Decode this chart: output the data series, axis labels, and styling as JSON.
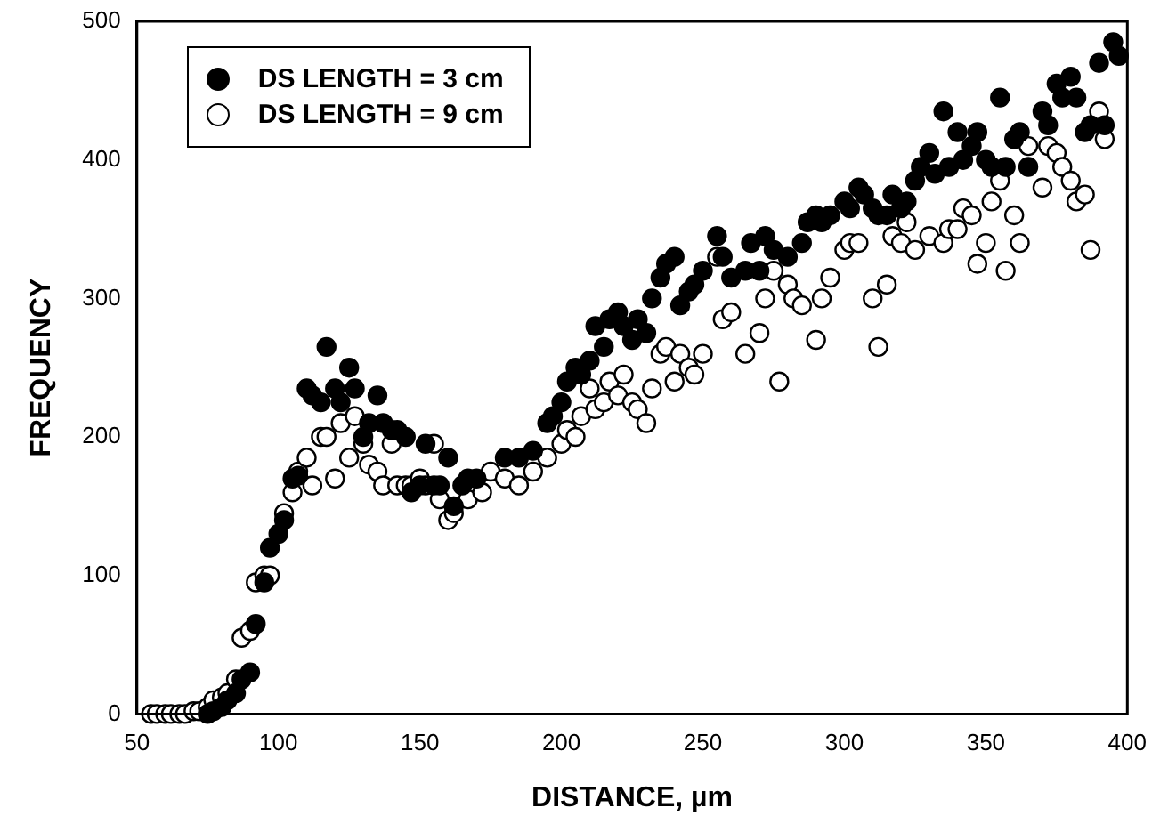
{
  "chart_data": {
    "type": "scatter",
    "xlabel": "DISTANCE, µm",
    "ylabel": "FREQUENCY",
    "xlim": [
      50,
      400
    ],
    "ylim": [
      0,
      500
    ],
    "xticks": [
      50,
      100,
      150,
      200,
      250,
      300,
      350,
      400
    ],
    "yticks": [
      0,
      100,
      200,
      300,
      400,
      500
    ],
    "grid": false,
    "legend": "top left",
    "marker": "circle",
    "series": [
      {
        "name": "DS LENGTH = 3 cm",
        "color": "#000000",
        "x": [
          75,
          77,
          80,
          82,
          85,
          87,
          90,
          92,
          95,
          97,
          100,
          102,
          105,
          107,
          110,
          112,
          115,
          117,
          120,
          122,
          125,
          127,
          130,
          132,
          135,
          137,
          140,
          142,
          145,
          147,
          150,
          152,
          155,
          157,
          160,
          162,
          165,
          167,
          170,
          180,
          185,
          190,
          195,
          197,
          200,
          202,
          205,
          207,
          210,
          212,
          215,
          217,
          220,
          222,
          225,
          227,
          230,
          232,
          235,
          237,
          240,
          242,
          245,
          247,
          250,
          255,
          257,
          260,
          265,
          267,
          270,
          272,
          275,
          280,
          285,
          287,
          290,
          292,
          295,
          300,
          302,
          305,
          307,
          310,
          312,
          315,
          317,
          320,
          322,
          325,
          327,
          330,
          332,
          335,
          337,
          340,
          342,
          345,
          347,
          350,
          352,
          355,
          357,
          360,
          362,
          365,
          370,
          372,
          375,
          377,
          380,
          382,
          385,
          387,
          390,
          392,
          395,
          397
        ],
        "values": [
          0,
          2,
          5,
          10,
          15,
          25,
          30,
          65,
          95,
          120,
          130,
          140,
          170,
          172,
          235,
          230,
          225,
          265,
          235,
          225,
          250,
          235,
          200,
          210,
          230,
          210,
          205,
          205,
          200,
          160,
          165,
          195,
          165,
          165,
          185,
          150,
          165,
          170,
          170,
          185,
          185,
          190,
          210,
          215,
          225,
          240,
          250,
          245,
          255,
          280,
          265,
          285,
          290,
          280,
          270,
          285,
          275,
          300,
          315,
          325,
          330,
          295,
          305,
          310,
          320,
          345,
          330,
          315,
          320,
          340,
          320,
          345,
          335,
          330,
          340,
          355,
          360,
          355,
          360,
          370,
          365,
          380,
          375,
          365,
          360,
          360,
          375,
          365,
          370,
          385,
          395,
          405,
          390,
          435,
          395,
          420,
          400,
          410,
          420,
          400,
          395,
          445,
          395,
          415,
          420,
          395,
          435,
          425,
          455,
          445,
          460,
          445,
          420,
          425,
          470,
          425,
          485,
          475
        ]
      },
      {
        "name": "DS LENGTH = 9 cm",
        "color": "#ffffff",
        "x": [
          55,
          57,
          60,
          62,
          65,
          67,
          70,
          72,
          75,
          77,
          80,
          82,
          85,
          87,
          90,
          92,
          95,
          97,
          102,
          105,
          107,
          110,
          112,
          115,
          117,
          120,
          122,
          125,
          127,
          130,
          132,
          135,
          137,
          140,
          142,
          145,
          147,
          150,
          152,
          155,
          157,
          160,
          162,
          167,
          172,
          175,
          180,
          185,
          190,
          195,
          200,
          202,
          205,
          207,
          210,
          212,
          215,
          217,
          220,
          222,
          225,
          227,
          230,
          232,
          235,
          237,
          240,
          242,
          245,
          247,
          250,
          255,
          257,
          260,
          265,
          270,
          272,
          275,
          277,
          280,
          282,
          285,
          290,
          292,
          295,
          300,
          302,
          305,
          310,
          312,
          315,
          317,
          320,
          322,
          325,
          330,
          335,
          337,
          340,
          342,
          345,
          347,
          350,
          352,
          355,
          357,
          360,
          362,
          365,
          370,
          372,
          375,
          377,
          380,
          382,
          385,
          387,
          390,
          392
        ],
        "values": [
          0,
          0,
          0,
          0,
          0,
          0,
          2,
          2,
          5,
          10,
          12,
          15,
          25,
          55,
          60,
          95,
          100,
          100,
          145,
          160,
          175,
          185,
          165,
          200,
          200,
          170,
          210,
          185,
          215,
          195,
          180,
          175,
          165,
          195,
          165,
          165,
          165,
          170,
          165,
          195,
          155,
          140,
          145,
          155,
          160,
          175,
          170,
          165,
          175,
          185,
          195,
          205,
          200,
          215,
          235,
          220,
          225,
          240,
          230,
          245,
          225,
          220,
          210,
          235,
          260,
          265,
          240,
          260,
          250,
          245,
          260,
          330,
          285,
          290,
          260,
          275,
          300,
          320,
          240,
          310,
          300,
          295,
          270,
          300,
          315,
          335,
          340,
          340,
          300,
          265,
          310,
          345,
          340,
          355,
          335,
          345,
          340,
          350,
          350,
          365,
          360,
          325,
          340,
          370,
          385,
          320,
          360,
          340,
          410,
          380,
          410,
          405,
          395,
          385,
          370,
          375,
          335,
          435,
          415
        ]
      }
    ]
  }
}
